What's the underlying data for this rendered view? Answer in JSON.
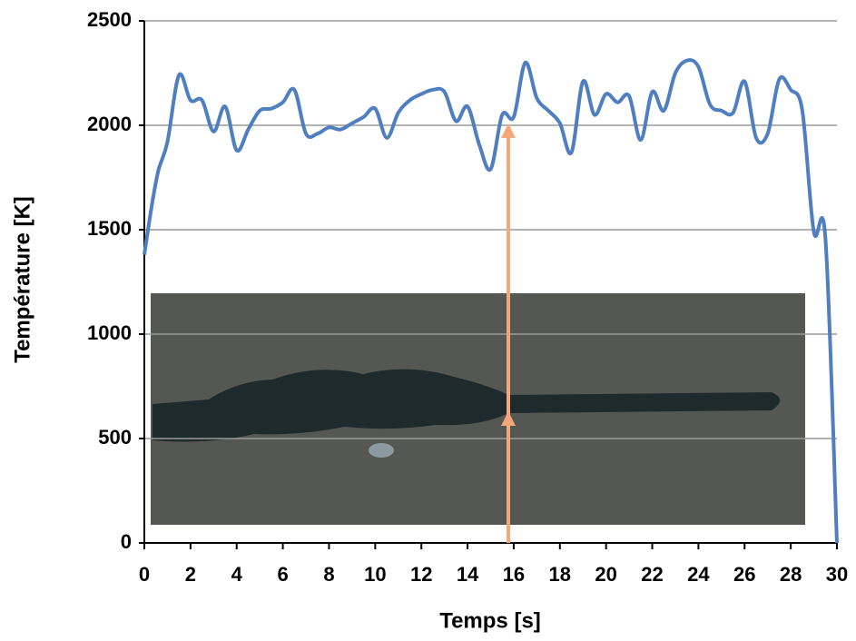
{
  "chart_data": {
    "type": "line",
    "x_label": "Temps [s]",
    "y_label": "Température [K]",
    "x": [
      0,
      0.3,
      0.6,
      1,
      1.5,
      2,
      2.5,
      3,
      3.5,
      4,
      4.5,
      5,
      5.5,
      6,
      6.5,
      7,
      7.5,
      8,
      8.5,
      9,
      9.5,
      10,
      10.5,
      11,
      11.5,
      12,
      12.5,
      13,
      13.5,
      14,
      14.5,
      15,
      15.5,
      16,
      16.5,
      17,
      17.5,
      18,
      18.5,
      19,
      19.5,
      20,
      20.5,
      21,
      21.5,
      22,
      22.5,
      23,
      23.5,
      24,
      24.5,
      25,
      25.5,
      26,
      26.5,
      27,
      27.5,
      28,
      28.5,
      29,
      29.5,
      30
    ],
    "values": [
      1380,
      1600,
      1780,
      1920,
      2240,
      2120,
      2120,
      1970,
      2090,
      1880,
      1980,
      2070,
      2080,
      2110,
      2170,
      1960,
      1960,
      1990,
      1980,
      2010,
      2040,
      2080,
      1940,
      2060,
      2120,
      2150,
      2170,
      2160,
      2020,
      2090,
      1910,
      1790,
      2050,
      2040,
      2300,
      2130,
      2070,
      2010,
      1870,
      2210,
      2050,
      2150,
      2110,
      2140,
      1930,
      2160,
      2070,
      2250,
      2310,
      2280,
      2100,
      2070,
      2060,
      2210,
      1940,
      1960,
      2220,
      2170,
      2070,
      1490,
      1460,
      0
    ],
    "color": "#4f7fc0",
    "xlim": [
      0,
      30
    ],
    "xticks": [
      0,
      2,
      4,
      6,
      8,
      10,
      12,
      14,
      16,
      18,
      20,
      22,
      24,
      26,
      28,
      30
    ],
    "ylim": [
      0,
      2500
    ],
    "yticks": [
      0,
      500,
      1000,
      1500,
      2000,
      2500
    ],
    "grid": true
  }
}
